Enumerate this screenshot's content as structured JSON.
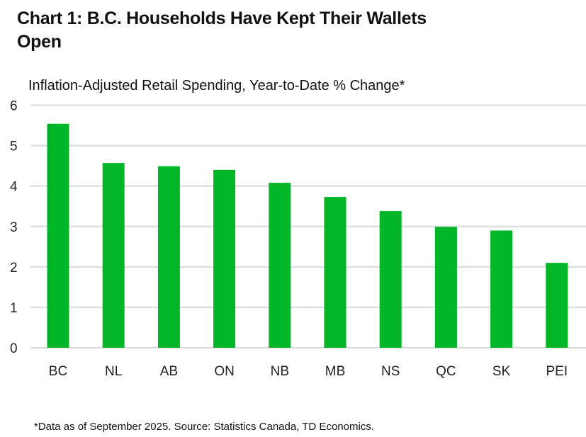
{
  "chart_data": {
    "type": "bar",
    "title": "Chart 1: B.C. Households Have Kept Their Wallets Open",
    "subtitle": "Inflation-Adjusted Retail Spending, Year-to-Date % Change*",
    "categories": [
      "BC",
      "NL",
      "AB",
      "ON",
      "NB",
      "MB",
      "NS",
      "QC",
      "SK",
      "PEI"
    ],
    "values": [
      5.54,
      4.57,
      4.49,
      4.4,
      4.08,
      3.73,
      3.38,
      2.99,
      2.9,
      2.1
    ],
    "ylim": [
      0,
      6
    ],
    "yticks": [
      "0",
      "1",
      "2",
      "3",
      "4",
      "5",
      "6"
    ],
    "grid": true,
    "bar_color": "#00b626",
    "grid_color": "#d9d9d9",
    "footnote": "*Data as of September 2025. Source: Statistics Canada, TD Economics."
  }
}
